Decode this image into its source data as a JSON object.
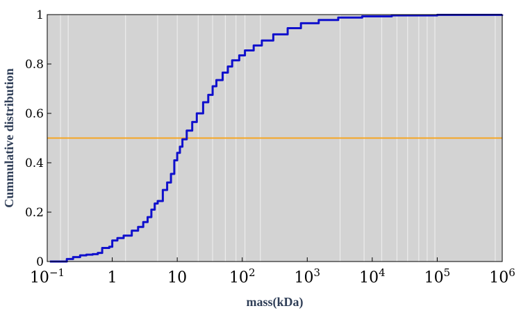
{
  "chart_data": {
    "type": "line",
    "title": "",
    "xlabel": "mass(kDa)",
    "ylabel": "Cummulative distribution",
    "x_scale": "log",
    "xlim": [
      0.1,
      1000000
    ],
    "ylim": [
      0,
      1
    ],
    "x_ticks": [
      {
        "value": 0.1,
        "base": "10",
        "exp": "−1"
      },
      {
        "value": 1,
        "base": "1",
        "exp": ""
      },
      {
        "value": 10,
        "base": "10",
        "exp": ""
      },
      {
        "value": 100,
        "base": "10",
        "exp": "2"
      },
      {
        "value": 1000,
        "base": "10",
        "exp": "3"
      },
      {
        "value": 10000,
        "base": "10",
        "exp": "4"
      },
      {
        "value": 100000,
        "base": "10",
        "exp": "5"
      },
      {
        "value": 1000000,
        "base": "10",
        "exp": "6"
      }
    ],
    "y_ticks": [
      {
        "value": 0,
        "label": "0"
      },
      {
        "value": 0.2,
        "label": "0.2"
      },
      {
        "value": 0.4,
        "label": "0.4"
      },
      {
        "value": 0.6,
        "label": "0.6"
      },
      {
        "value": 0.8,
        "label": "0.8"
      },
      {
        "value": 1,
        "label": "1"
      }
    ],
    "grid_x": [
      0.16,
      0.21,
      1.6,
      5,
      10,
      21,
      35,
      55,
      80,
      110,
      190,
      3200,
      7500,
      14000,
      24000,
      35000,
      52000,
      70000,
      92000,
      780000
    ],
    "reference_line": {
      "y": 0.5,
      "color": "#f5a623"
    },
    "series": [
      {
        "color": "#1010cc",
        "points": [
          [
            0.11,
            0.0
          ],
          [
            0.16,
            0.0
          ],
          [
            0.2,
            0.01
          ],
          [
            0.25,
            0.018
          ],
          [
            0.32,
            0.025
          ],
          [
            0.4,
            0.028
          ],
          [
            0.5,
            0.03
          ],
          [
            0.6,
            0.035
          ],
          [
            0.7,
            0.055
          ],
          [
            0.9,
            0.06
          ],
          [
            1.0,
            0.085
          ],
          [
            1.2,
            0.095
          ],
          [
            1.5,
            0.105
          ],
          [
            2.0,
            0.125
          ],
          [
            2.5,
            0.14
          ],
          [
            3.0,
            0.16
          ],
          [
            3.5,
            0.18
          ],
          [
            4.0,
            0.21
          ],
          [
            4.5,
            0.235
          ],
          [
            5.0,
            0.245
          ],
          [
            6.0,
            0.29
          ],
          [
            7.0,
            0.32
          ],
          [
            8.0,
            0.355
          ],
          [
            9.0,
            0.41
          ],
          [
            10.0,
            0.44
          ],
          [
            11.0,
            0.465
          ],
          [
            12.0,
            0.495
          ],
          [
            14.0,
            0.53
          ],
          [
            17.0,
            0.565
          ],
          [
            20.0,
            0.6
          ],
          [
            25.0,
            0.645
          ],
          [
            30.0,
            0.675
          ],
          [
            35.0,
            0.71
          ],
          [
            40.0,
            0.735
          ],
          [
            50.0,
            0.765
          ],
          [
            60.0,
            0.79
          ],
          [
            70.0,
            0.815
          ],
          [
            90.0,
            0.835
          ],
          [
            110.0,
            0.855
          ],
          [
            150.0,
            0.875
          ],
          [
            200.0,
            0.895
          ],
          [
            300.0,
            0.92
          ],
          [
            500.0,
            0.945
          ],
          [
            800.0,
            0.965
          ],
          [
            1500.0,
            0.978
          ],
          [
            3000.0,
            0.988
          ],
          [
            7000.0,
            0.993
          ],
          [
            20000.0,
            0.997
          ],
          [
            100000.0,
            0.999
          ],
          [
            1000000.0,
            1.0
          ]
        ]
      }
    ]
  }
}
